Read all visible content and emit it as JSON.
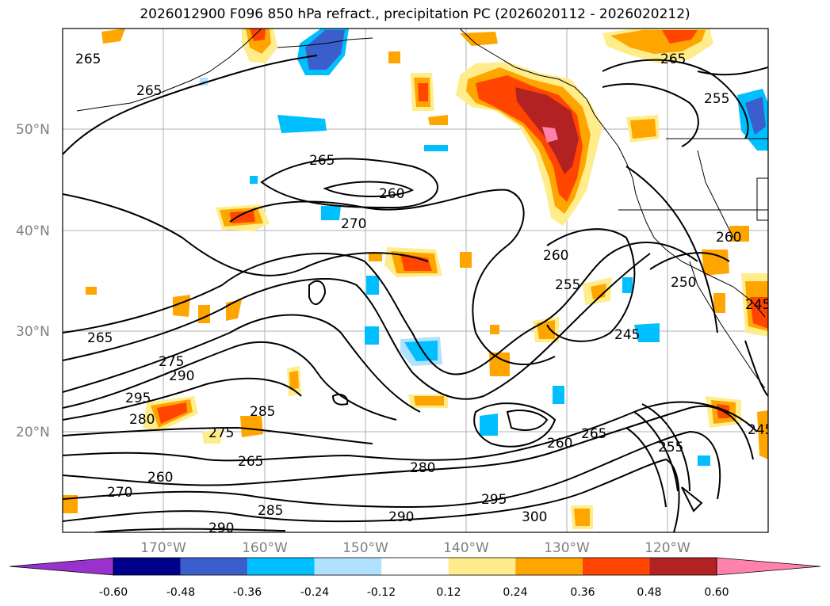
{
  "title": "2026012900 F096 850 hPa refract., precipitation PC (2026020112 - 2026020212)",
  "map": {
    "lat_labels": [
      "50°N",
      "40°N",
      "30°N",
      "20°N"
    ],
    "lon_labels": [
      "170°W",
      "160°W",
      "150°W",
      "140°W",
      "130°W",
      "120°W"
    ],
    "contour_labels": [
      "265",
      "265",
      "265",
      "260",
      "270",
      "265",
      "275",
      "290",
      "295",
      "280",
      "285",
      "275",
      "265",
      "260",
      "270",
      "285",
      "290",
      "280",
      "290",
      "295",
      "300",
      "260",
      "265",
      "260",
      "255",
      "255",
      "265",
      "250",
      "260",
      "245",
      "245",
      "255",
      "245"
    ]
  },
  "colorbar": {
    "ticks": [
      "-0.60",
      "-0.48",
      "-0.36",
      "-0.24",
      "-0.12",
      "0.12",
      "0.24",
      "0.36",
      "0.48",
      "0.60"
    ],
    "colors": [
      "#9932cc",
      "#00008b",
      "#3a5fcd",
      "#00bfff",
      "#b0e2ff",
      "#ffffff",
      "#ffec8b",
      "#ffa500",
      "#ff4500",
      "#b22222",
      "#ff82ab"
    ]
  }
}
